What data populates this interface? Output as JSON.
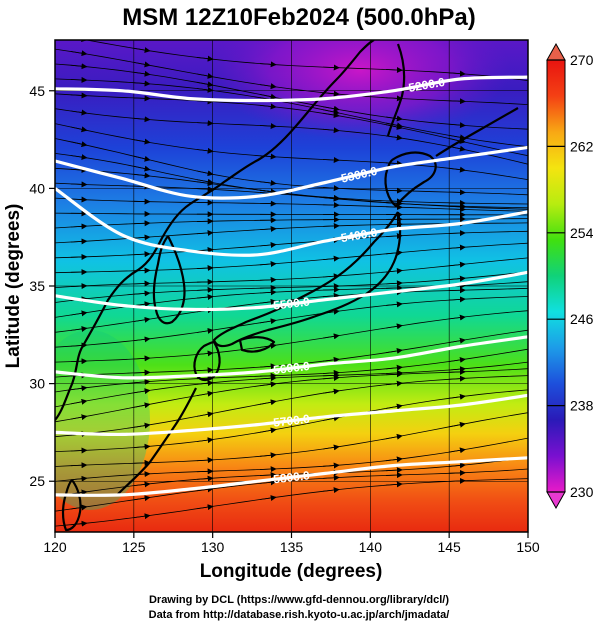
{
  "title": "MSM 12Z10Feb2024 (500.0hPa)",
  "x_axis": {
    "label": "Longitude (degrees)",
    "min": 120,
    "max": 150,
    "ticks": [
      "120",
      "125",
      "130",
      "135",
      "140",
      "145",
      "150"
    ]
  },
  "y_axis": {
    "label": "Latitude  (degrees)",
    "min": 22.4,
    "max": 47.6,
    "ticks": [
      "25",
      "30",
      "35",
      "40",
      "45"
    ]
  },
  "colorbar": {
    "min": 230,
    "max": 270,
    "tick_labels": [
      "270",
      "262",
      "254",
      "246",
      "238",
      "230"
    ],
    "colors": [
      "#e81ac8",
      "#7a10d0",
      "#2a1ab8",
      "#1d4fdc",
      "#1d9be8",
      "#10e0e0",
      "#10d27a",
      "#40e010",
      "#b8ec10",
      "#f4e410",
      "#f8a814",
      "#f44014",
      "#e81410"
    ]
  },
  "contours": [
    {
      "label": "5200.0",
      "lats": [
        45.1,
        45.0,
        44.6,
        44.5,
        44.6,
        45.0,
        45.6,
        45.7
      ]
    },
    {
      "label": "5300.0",
      "lats": [
        41.4,
        40.5,
        39.6,
        39.6,
        40.3,
        41.1,
        41.6,
        42.1
      ]
    },
    {
      "label": "5400.0",
      "lats": [
        40.0,
        37.6,
        36.8,
        36.6,
        37.3,
        37.9,
        38.2,
        38.8
      ]
    },
    {
      "label": "5500.0",
      "lats": [
        34.5,
        34.0,
        33.8,
        33.9,
        34.3,
        34.7,
        35.1,
        35.7
      ]
    },
    {
      "label": "5600.0",
      "lats": [
        30.6,
        30.3,
        30.4,
        30.6,
        31.0,
        31.3,
        31.9,
        32.4
      ]
    },
    {
      "label": "5700.0",
      "lats": [
        27.5,
        27.4,
        27.6,
        27.9,
        28.3,
        28.6,
        28.9,
        29.4
      ]
    },
    {
      "label": "5800.0",
      "lats": [
        24.3,
        24.3,
        24.6,
        25.0,
        25.4,
        25.8,
        26.0,
        26.2
      ]
    }
  ],
  "credits": [
    "Drawing by DCL (https://www.gfd-dennou.org/library/dcl/)",
    "Data from http://database.rish.kyoto-u.ac.jp/arch/jmadata/"
  ]
}
